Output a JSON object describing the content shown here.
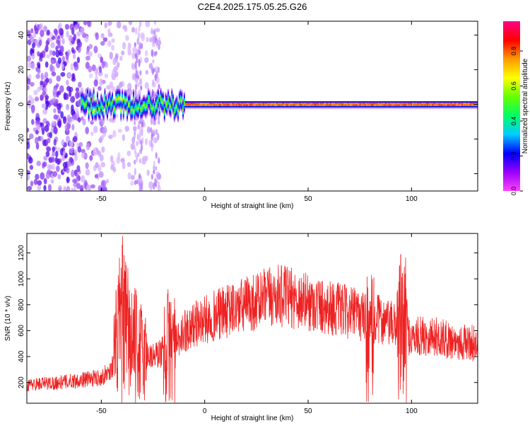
{
  "chart_data": [
    {
      "type": "heatmap",
      "title": "C2E4.2025.175.05.25.G26",
      "xlabel": "Height of straight line (km)",
      "ylabel": "Frequency (Hz)",
      "xlim": [
        -86,
        132
      ],
      "ylim": [
        -50,
        48
      ],
      "x_ticks": [
        -50,
        0,
        50,
        100
      ],
      "y_ticks": [
        -40,
        -20,
        0,
        20,
        40
      ],
      "grid": false,
      "colorbar": {
        "label": "Normalized spectral amplitude",
        "range": [
          0.0,
          0.97
        ],
        "ticks": [
          0.0,
          0.2,
          0.4,
          0.6,
          0.8
        ],
        "colors": [
          "#ff44ff",
          "#9900ff",
          "#0000ff",
          "#00ccff",
          "#00ff66",
          "#66ff00",
          "#ffff00",
          "#ff9900",
          "#ff0000",
          "#ff0088"
        ]
      },
      "features": {
        "carrier_frequency_hz": 0,
        "noisy_region_km": [
          -86,
          -22
        ],
        "bright_segments_km": [
          [
            -10,
            75
          ],
          [
            80,
            100
          ],
          [
            102,
            132
          ]
        ]
      }
    },
    {
      "type": "line",
      "xlabel": "Height of straight line (km)",
      "ylabel": "SNR (10 * v/v)",
      "xlim": [
        -86,
        132
      ],
      "ylim": [
        40,
        1350
      ],
      "x_ticks": [
        -50,
        0,
        50,
        100
      ],
      "y_ticks": [
        200,
        400,
        600,
        800,
        1000,
        1200
      ],
      "grid": false,
      "series": [
        {
          "color": "#ee2222",
          "x": [
            -86,
            -80,
            -70,
            -60,
            -50,
            -45,
            -42,
            -40,
            -38,
            -35,
            -32,
            -30,
            -28,
            -25,
            -22,
            -20,
            -18,
            -15,
            -12,
            -10,
            -8,
            -5,
            0,
            5,
            10,
            20,
            30,
            35,
            40,
            45,
            50,
            55,
            60,
            65,
            70,
            75,
            78,
            80,
            83,
            85,
            90,
            93,
            96,
            100,
            105,
            110,
            115,
            120,
            125,
            132
          ],
          "y": [
            180,
            190,
            200,
            220,
            240,
            300,
            550,
            700,
            600,
            500,
            450,
            420,
            420,
            400,
            420,
            450,
            480,
            500,
            520,
            600,
            620,
            650,
            680,
            720,
            740,
            800,
            850,
            870,
            860,
            840,
            820,
            800,
            780,
            760,
            740,
            720,
            700,
            480,
            700,
            680,
            650,
            640,
            620,
            540,
            560,
            560,
            540,
            520,
            510,
            500
          ]
        }
      ]
    }
  ]
}
